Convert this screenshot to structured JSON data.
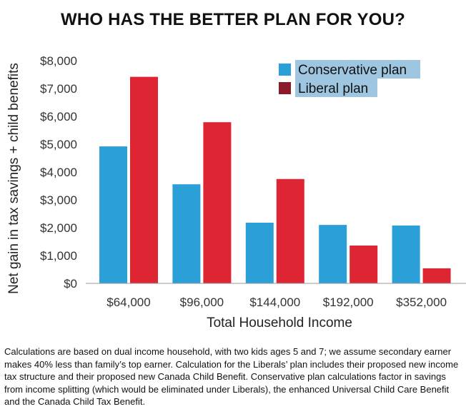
{
  "chart_data": {
    "type": "bar",
    "title": "WHO HAS THE BETTER PLAN FOR YOU?",
    "xlabel": "Total Household Income",
    "ylabel": "Net gain in tax savings + child benefits",
    "categories": [
      "$64,000",
      "$96,000",
      "$144,000",
      "$192,000",
      "$352,000"
    ],
    "series": [
      {
        "name": "Conservative plan",
        "color": "#2a9fd8",
        "values": [
          4920,
          3560,
          2180,
          2100,
          2080
        ]
      },
      {
        "name": "Liberal plan",
        "color": "#dd2533",
        "values": [
          7420,
          5790,
          3750,
          1360,
          540
        ]
      }
    ],
    "ylim": [
      0,
      8000
    ],
    "yticks": [
      0,
      1000,
      2000,
      3000,
      4000,
      5000,
      6000,
      7000,
      8000
    ],
    "ytick_labels": [
      "$0",
      "$1,000",
      "$2,000",
      "$3,000",
      "$4,000",
      "$5,000",
      "$6,000",
      "$7,000",
      "$8,000"
    ],
    "legend": {
      "placement": "top-right",
      "background": "#9ec6e0",
      "liberal_swatch": "#8b1a2a"
    },
    "grid": false
  },
  "footnote": "Calculations are based on dual income household, with two kids ages 5 and 7; we assume secondary earner makes 40% less than family’s top earner. Calculation for the Liberals’ plan includes their proposed new income tax structure and their proposed new Canada Child Benefit. Conservative plan calculations factor in savings from income splitting (which would be eliminated under Liberals), the enhanced Universal Child Care Benefit and the Canada Child Tax Benefit."
}
